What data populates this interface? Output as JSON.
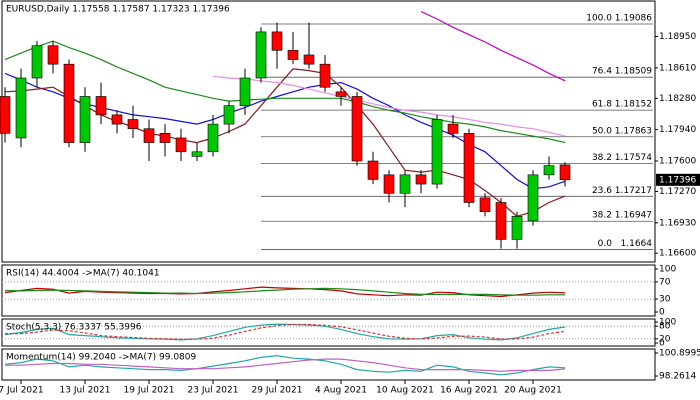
{
  "chart_data": [
    {
      "type": "candlestick",
      "title": "EURUSD,Daily 1.17558 1.17587 1.17323 1.17396",
      "categories": [
        null,
        "7 Jul 2021",
        null,
        null,
        null,
        "13 Jul 2021",
        null,
        null,
        null,
        "19 Jul 2021",
        null,
        null,
        null,
        "23 Jul 2021",
        null,
        null,
        null,
        "29 Jul 2021",
        null,
        null,
        null,
        "4 Aug 2021",
        null,
        null,
        null,
        "10 Aug 2021",
        null,
        null,
        null,
        "16 Aug 2021",
        null,
        null,
        null,
        "20 Aug 2021",
        null,
        null
      ],
      "open": [
        1.183,
        1.1785,
        1.185,
        1.1885,
        1.1865,
        1.178,
        1.183,
        1.181,
        1.1805,
        1.1795,
        1.179,
        1.1785,
        1.1765,
        1.177,
        1.18,
        1.182,
        1.185,
        1.19,
        1.188,
        1.1875,
        1.1865,
        1.1835,
        1.183,
        1.176,
        1.1745,
        1.1725,
        1.1745,
        1.1735,
        1.18,
        1.179,
        1.172,
        1.1715,
        1.1675,
        1.1695,
        1.1745,
        1.17558
      ],
      "high": [
        1.184,
        1.186,
        1.189,
        1.189,
        1.187,
        1.184,
        1.1845,
        1.1815,
        1.182,
        1.1805,
        1.18,
        1.1795,
        1.178,
        1.181,
        1.1825,
        1.186,
        1.1905,
        1.191,
        1.19,
        1.191,
        1.1875,
        1.184,
        1.1835,
        1.177,
        1.175,
        1.175,
        1.175,
        1.181,
        1.181,
        1.1795,
        1.1725,
        1.172,
        1.1705,
        1.175,
        1.1765,
        1.17587
      ],
      "low": [
        1.178,
        1.1775,
        1.184,
        1.1855,
        1.1775,
        1.177,
        1.18,
        1.179,
        1.1785,
        1.176,
        1.1765,
        1.176,
        1.176,
        1.1765,
        1.179,
        1.181,
        1.1845,
        1.186,
        1.1865,
        1.186,
        1.1835,
        1.182,
        1.1755,
        1.1735,
        1.1715,
        1.171,
        1.1725,
        1.173,
        1.1785,
        1.171,
        1.17,
        1.1665,
        1.1665,
        1.169,
        1.174,
        1.17323
      ],
      "close": [
        1.179,
        1.185,
        1.1885,
        1.1865,
        1.178,
        1.183,
        1.181,
        1.18,
        1.1795,
        1.178,
        1.178,
        1.177,
        1.177,
        1.18,
        1.182,
        1.185,
        1.19,
        1.188,
        1.187,
        1.1865,
        1.184,
        1.183,
        1.176,
        1.174,
        1.1725,
        1.1745,
        1.1735,
        1.1805,
        1.179,
        1.1715,
        1.1705,
        1.1675,
        1.17,
        1.1745,
        1.1755,
        1.17396
      ],
      "up_color": "#00c800",
      "down_color": "#ff0000",
      "series": [
        {
          "color": "#1010e0",
          "values": [
            1.1855,
            1.1848,
            1.184,
            1.1835,
            1.1828,
            1.1822,
            1.1818,
            1.1814,
            1.181,
            1.1808,
            1.1806,
            1.1803,
            1.18,
            1.1805,
            1.1812,
            1.1818,
            1.1825,
            1.183,
            1.1835,
            1.184,
            1.1843,
            1.1845,
            1.1838,
            1.1828,
            1.182,
            1.181,
            1.1802,
            1.1795,
            1.1788,
            1.1778,
            1.177,
            1.1755,
            1.174,
            1.173,
            1.1732,
            1.1738
          ]
        },
        {
          "color": "#8b1a1a",
          "values": [
            1.1835,
            1.1836,
            1.1838,
            1.184,
            1.183,
            1.182,
            1.181,
            1.1803,
            1.1797,
            1.179,
            1.1787,
            1.1783,
            1.178,
            1.1785,
            1.1792,
            1.18,
            1.182,
            1.184,
            1.186,
            1.1858,
            1.1855,
            1.184,
            1.182,
            1.18,
            1.1775,
            1.175,
            1.1748,
            1.175,
            1.1745,
            1.174,
            1.1728,
            1.1715,
            1.17,
            1.1705,
            1.1715,
            1.1722
          ]
        },
        {
          "color": "#1a8a1a",
          "values": [
            1.187,
            1.1877,
            1.1884,
            1.189,
            1.1883,
            1.1877,
            1.187,
            1.1862,
            1.1855,
            1.1848,
            1.184,
            1.1836,
            1.1832,
            1.1828,
            1.1825,
            1.1826,
            1.1827,
            1.1828,
            1.1828,
            1.1828,
            1.1828,
            1.1828,
            1.1824,
            1.1819,
            1.1815,
            1.1812,
            1.1808,
            1.1805,
            1.1802,
            1.18,
            1.1797,
            1.1793,
            1.179,
            1.1787,
            1.1784,
            1.178
          ]
        },
        {
          "color": "#e58ce5",
          "values": [
            null,
            null,
            null,
            null,
            null,
            null,
            null,
            null,
            null,
            null,
            null,
            null,
            null,
            1.1852,
            1.185,
            1.1849,
            1.1847,
            1.1845,
            1.1842,
            1.1838,
            1.1834,
            1.183,
            1.1826,
            1.1822,
            1.1818,
            1.1815,
            1.1813,
            1.181,
            1.1808,
            1.1805,
            1.1802,
            1.18,
            1.1797,
            1.1795,
            1.1791,
            1.1787
          ]
        },
        {
          "color": "#c800c8",
          "values": [
            null,
            null,
            null,
            null,
            null,
            null,
            null,
            null,
            null,
            null,
            null,
            null,
            null,
            null,
            null,
            null,
            null,
            null,
            null,
            null,
            null,
            null,
            null,
            null,
            null,
            null,
            1.1922,
            1.1914,
            1.1905,
            1.1897,
            1.1889,
            1.188,
            1.1872,
            1.1864,
            1.1855,
            1.1847
          ]
        }
      ],
      "fib": [
        {
          "level": "100.0",
          "price": 1.19086
        },
        {
          "level": "76.4",
          "price": 1.18509
        },
        {
          "level": "61.8",
          "price": 1.18152
        },
        {
          "level": "50.0",
          "price": 1.17863
        },
        {
          "level": "38.2",
          "price": 1.17574
        },
        {
          "level": "23.6",
          "price": 1.17217
        },
        {
          "level": "38.2",
          "price": 1.16947
        },
        {
          "level": "0.0",
          "price": 1.1664
        }
      ],
      "last_price": 1.17396,
      "ylim": [
        1.1657,
        1.1927
      ],
      "yticks": [
        {
          "value": 1.1895,
          "label": "1.18950"
        },
        {
          "value": 1.1861,
          "label": "1.18610"
        },
        {
          "value": 1.1828,
          "label": "1.18280"
        },
        {
          "value": 1.1794,
          "label": "1.17940"
        },
        {
          "value": 1.176,
          "label": "1.17600"
        },
        {
          "value": 1.1727,
          "label": "1.17270"
        },
        {
          "value": 1.1693,
          "label": "1.16930"
        },
        {
          "value": 1.166,
          "label": "1.16600"
        }
      ]
    },
    {
      "type": "line",
      "title": "RSI(14) 44.4004 ->MA(7) 40.1041",
      "series": [
        {
          "color": "#c00000",
          "values": [
            45,
            50,
            55,
            53,
            44,
            48,
            46,
            45,
            44,
            43,
            43,
            42,
            43,
            47,
            50,
            54,
            58,
            56,
            55,
            54,
            52,
            49,
            42,
            40,
            38,
            40,
            39,
            46,
            45,
            40,
            38,
            36,
            40,
            44,
            46,
            44.4004
          ]
        },
        {
          "color": "#1a8a1a",
          "values": [
            50,
            49,
            50,
            51,
            50,
            49,
            48,
            47,
            46,
            45,
            44,
            44,
            43,
            44,
            45,
            47,
            49,
            51,
            53,
            54,
            55,
            54,
            52,
            49,
            46,
            43,
            41,
            41,
            41,
            41,
            41,
            40,
            39,
            39,
            40,
            40.1041
          ]
        }
      ],
      "ylim": [
        0,
        100
      ],
      "yticks": [
        100,
        70,
        30,
        0
      ]
    },
    {
      "type": "line",
      "title": "Stoch(5,3,3) 76.3337 55.3996",
      "series": [
        {
          "color": "#20a8a8",
          "values": [
            40,
            50,
            65,
            70,
            40,
            35,
            30,
            25,
            22,
            20,
            18,
            15,
            20,
            35,
            55,
            75,
            85,
            90,
            88,
            85,
            80,
            65,
            45,
            30,
            20,
            18,
            20,
            35,
            40,
            25,
            18,
            15,
            25,
            45,
            65,
            76.3337
          ]
        },
        {
          "color": "#e03030",
          "dashed": true,
          "values": [
            45,
            45,
            52,
            62,
            58,
            48,
            35,
            30,
            26,
            22,
            20,
            18,
            18,
            23,
            37,
            55,
            72,
            83,
            88,
            88,
            84,
            77,
            63,
            47,
            32,
            23,
            19,
            24,
            32,
            33,
            28,
            19,
            19,
            28,
            45,
            55.3996
          ]
        }
      ],
      "ylim": [
        0,
        100
      ],
      "yticks": [
        100,
        80,
        20,
        0
      ]
    },
    {
      "type": "line",
      "title": "Momentum(14) 99.2040 ->MA(7) 99.0809",
      "series": [
        {
          "color": "#20a8a8",
          "values": [
            99.6,
            99.8,
            100.2,
            100.0,
            99.3,
            99.5,
            99.3,
            99.2,
            99.1,
            99.0,
            99.0,
            98.9,
            99.1,
            99.4,
            99.7,
            100.0,
            100.4,
            100.6,
            100.3,
            100.2,
            100.0,
            99.6,
            99.0,
            98.8,
            98.7,
            98.9,
            98.8,
            99.5,
            99.3,
            98.8,
            98.6,
            98.4,
            98.6,
            99.0,
            99.3,
            99.204
          ]
        },
        {
          "color": "#c060c0",
          "values": [
            99.5,
            99.5,
            99.6,
            99.7,
            99.7,
            99.6,
            99.6,
            99.5,
            99.4,
            99.3,
            99.2,
            99.1,
            99.1,
            99.1,
            99.2,
            99.3,
            99.5,
            99.7,
            99.9,
            100.1,
            100.2,
            100.2,
            100.0,
            99.8,
            99.5,
            99.2,
            99.0,
            99.0,
            99.0,
            99.0,
            98.9,
            98.8,
            98.9,
            98.9,
            98.9,
            99.0809
          ]
        }
      ],
      "ylim": [
        98.2614,
        100.8995
      ],
      "yticks": [
        {
          "value": 100.8995,
          "label": "100.8995"
        },
        {
          "value": 98.2614,
          "label": "98.2614"
        }
      ]
    }
  ]
}
